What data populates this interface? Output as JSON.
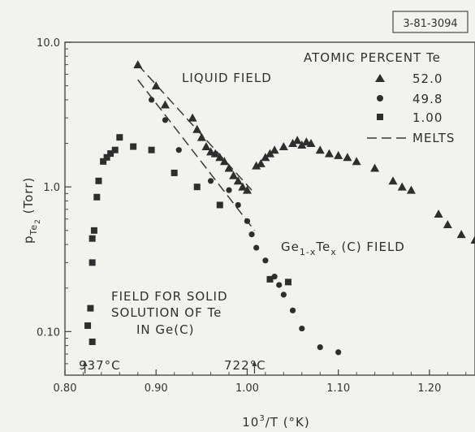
{
  "figure_id": "3-81-3094",
  "chart_data": {
    "type": "scatter",
    "x_axis": {
      "label_base": "10",
      "label_sup": "3",
      "label_rest": "/T (°K)",
      "range": [
        0.8,
        1.25
      ],
      "ticks": [
        0.8,
        0.9,
        1.0,
        1.1,
        1.2
      ],
      "tick_labels": [
        "0.80",
        "0.90",
        "1.00",
        "1.10",
        "1.20"
      ]
    },
    "y_axis": {
      "label_base": "p",
      "label_sub": "Te",
      "label_subsub": "2",
      "label_rest": " (Torr)",
      "scale": "log",
      "range": [
        0.05,
        10
      ],
      "ticks": [
        0.1,
        1.0,
        10.0
      ],
      "tick_labels": [
        "0.10",
        "1.0",
        "10.0"
      ]
    },
    "legend": {
      "title": "ATOMIC PERCENT Te",
      "placement": "top-right",
      "entries": [
        {
          "marker": "triangle",
          "label": "52.0"
        },
        {
          "marker": "circle",
          "label": "49.8"
        },
        {
          "marker": "square",
          "label": "1.00"
        },
        {
          "marker": "dashed-line",
          "label": "MELTS"
        }
      ]
    },
    "annotations": {
      "liquid_field": "LIQUID FIELD",
      "gete_field_pre": "Ge",
      "gete_field_sub1": "1-x",
      "gete_field_mid": "Te",
      "gete_field_sub2": "x",
      "gete_field_post": " (C) FIELD",
      "solid_field_line1": "FIELD FOR SOLID",
      "solid_field_line2": "SOLUTION OF Te",
      "solid_field_line3": "IN  Ge(C)",
      "temp_left": "937°C",
      "temp_left_x": 0.822,
      "temp_right": "722°C",
      "temp_right_x": 1.008
    },
    "series": [
      {
        "name": "52.0",
        "marker": "triangle",
        "points": [
          [
            0.88,
            7.0
          ],
          [
            0.9,
            5.0
          ],
          [
            0.91,
            3.7
          ],
          [
            0.94,
            3.0
          ],
          [
            0.945,
            2.5
          ],
          [
            0.95,
            2.2
          ],
          [
            0.955,
            1.9
          ],
          [
            0.96,
            1.75
          ],
          [
            0.965,
            1.7
          ],
          [
            0.97,
            1.6
          ],
          [
            0.975,
            1.5
          ],
          [
            0.98,
            1.35
          ],
          [
            0.985,
            1.2
          ],
          [
            0.99,
            1.1
          ],
          [
            0.995,
            1.0
          ],
          [
            1.0,
            0.95
          ],
          [
            1.01,
            1.4
          ],
          [
            1.015,
            1.45
          ],
          [
            1.02,
            1.6
          ],
          [
            1.025,
            1.7
          ],
          [
            1.03,
            1.8
          ],
          [
            1.04,
            1.9
          ],
          [
            1.05,
            2.0
          ],
          [
            1.055,
            2.1
          ],
          [
            1.06,
            1.95
          ],
          [
            1.065,
            2.05
          ],
          [
            1.07,
            2.0
          ],
          [
            1.08,
            1.8
          ],
          [
            1.09,
            1.7
          ],
          [
            1.1,
            1.65
          ],
          [
            1.11,
            1.6
          ],
          [
            1.12,
            1.5
          ],
          [
            1.14,
            1.35
          ],
          [
            1.16,
            1.1
          ],
          [
            1.17,
            1.0
          ],
          [
            1.18,
            0.95
          ],
          [
            1.21,
            0.65
          ],
          [
            1.22,
            0.55
          ],
          [
            1.235,
            0.47
          ],
          [
            1.25,
            0.43
          ]
        ]
      },
      {
        "name": "49.8",
        "marker": "circle",
        "points": [
          [
            0.895,
            4.0
          ],
          [
            0.91,
            2.9
          ],
          [
            0.925,
            1.8
          ],
          [
            0.96,
            1.1
          ],
          [
            0.98,
            0.95
          ],
          [
            0.99,
            0.75
          ],
          [
            1.0,
            0.58
          ],
          [
            1.005,
            0.47
          ],
          [
            1.01,
            0.38
          ],
          [
            1.02,
            0.31
          ],
          [
            1.03,
            0.24
          ],
          [
            1.035,
            0.21
          ],
          [
            1.04,
            0.18
          ],
          [
            1.05,
            0.14
          ],
          [
            1.06,
            0.105
          ],
          [
            1.08,
            0.078
          ],
          [
            1.1,
            0.072
          ]
        ]
      },
      {
        "name": "1.00",
        "marker": "square",
        "points": [
          [
            0.825,
            0.11
          ],
          [
            0.828,
            0.145
          ],
          [
            0.83,
            0.085
          ],
          [
            0.83,
            0.3
          ],
          [
            0.83,
            0.44
          ],
          [
            0.832,
            0.5
          ],
          [
            0.835,
            0.85
          ],
          [
            0.837,
            1.1
          ],
          [
            0.842,
            1.5
          ],
          [
            0.846,
            1.6
          ],
          [
            0.85,
            1.7
          ],
          [
            0.855,
            1.8
          ],
          [
            0.86,
            2.2
          ],
          [
            0.875,
            1.9
          ],
          [
            0.895,
            1.8
          ],
          [
            0.92,
            1.25
          ],
          [
            0.945,
            1.0
          ],
          [
            0.97,
            0.75
          ],
          [
            1.025,
            0.23
          ],
          [
            1.045,
            0.22
          ]
        ]
      }
    ],
    "melt_lines": [
      {
        "name": "MELTS",
        "points": [
          [
            0.88,
            7.0
          ],
          [
            1.005,
            0.95
          ]
        ]
      },
      {
        "name": "MELTS",
        "points": [
          [
            0.88,
            5.5
          ],
          [
            1.008,
            0.5
          ]
        ]
      }
    ]
  }
}
